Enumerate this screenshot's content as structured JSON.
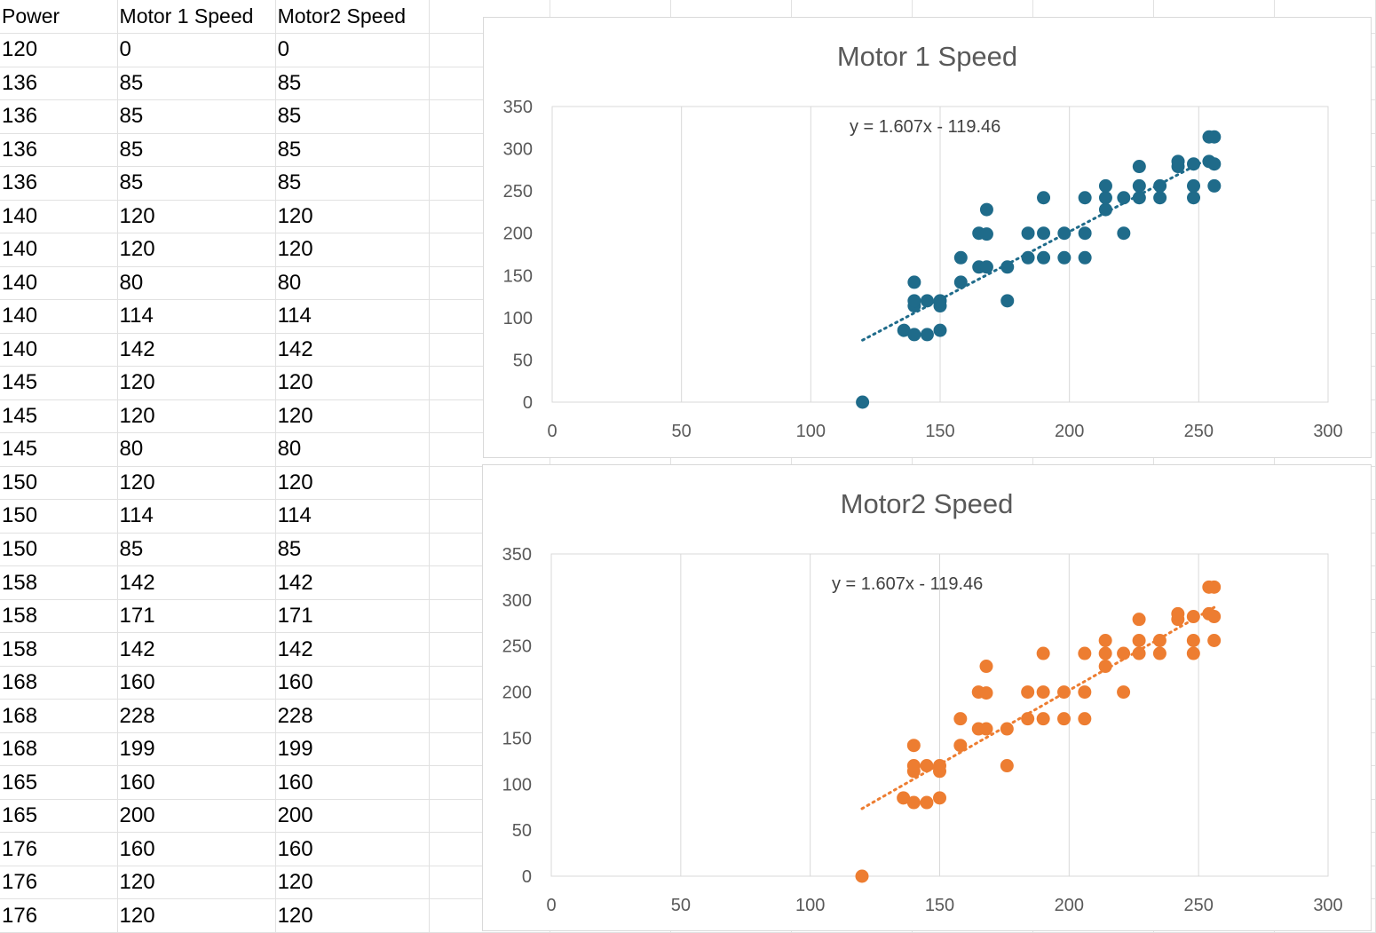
{
  "sheet": {
    "headers": [
      "Power",
      "Motor 1 Speed",
      "Motor2 Speed"
    ],
    "rows": [
      [
        "120",
        "0",
        "0"
      ],
      [
        "136",
        "85",
        "85"
      ],
      [
        "136",
        "85",
        "85"
      ],
      [
        "136",
        "85",
        "85"
      ],
      [
        "136",
        "85",
        "85"
      ],
      [
        "140",
        "120",
        "120"
      ],
      [
        "140",
        "120",
        "120"
      ],
      [
        "140",
        "80",
        "80"
      ],
      [
        "140",
        "114",
        "114"
      ],
      [
        "140",
        "142",
        "142"
      ],
      [
        "145",
        "120",
        "120"
      ],
      [
        "145",
        "120",
        "120"
      ],
      [
        "145",
        "80",
        "80"
      ],
      [
        "150",
        "120",
        "120"
      ],
      [
        "150",
        "114",
        "114"
      ],
      [
        "150",
        "85",
        "85"
      ],
      [
        "158",
        "142",
        "142"
      ],
      [
        "158",
        "171",
        "171"
      ],
      [
        "158",
        "142",
        "142"
      ],
      [
        "168",
        "160",
        "160"
      ],
      [
        "168",
        "228",
        "228"
      ],
      [
        "168",
        "199",
        "199"
      ],
      [
        "165",
        "160",
        "160"
      ],
      [
        "165",
        "200",
        "200"
      ],
      [
        "176",
        "160",
        "160"
      ],
      [
        "176",
        "120",
        "120"
      ],
      [
        "176",
        "120",
        "120"
      ]
    ]
  },
  "chart_data": [
    {
      "type": "scatter",
      "title": "Motor 1 Speed",
      "color": "#1f6b8a",
      "trendline": {
        "equation": "y = 1.607x - 119.46",
        "slope": 1.607,
        "intercept": -119.46,
        "x_range": [
          120,
          256
        ],
        "style": "dotted"
      },
      "xlim": [
        0,
        300
      ],
      "ylim": [
        0,
        350
      ],
      "xticks": [
        "0",
        "50",
        "100",
        "150",
        "200",
        "250",
        "300"
      ],
      "yticks": [
        "0",
        "50",
        "100",
        "150",
        "200",
        "250",
        "300",
        "350"
      ],
      "grid": "vertical",
      "points": [
        [
          120,
          0
        ],
        [
          136,
          85
        ],
        [
          140,
          80
        ],
        [
          140,
          114
        ],
        [
          140,
          120
        ],
        [
          140,
          142
        ],
        [
          145,
          80
        ],
        [
          145,
          120
        ],
        [
          150,
          85
        ],
        [
          150,
          114
        ],
        [
          150,
          120
        ],
        [
          158,
          142
        ],
        [
          158,
          171
        ],
        [
          165,
          160
        ],
        [
          165,
          200
        ],
        [
          168,
          160
        ],
        [
          168,
          199
        ],
        [
          168,
          228
        ],
        [
          176,
          120
        ],
        [
          176,
          160
        ],
        [
          184,
          171
        ],
        [
          184,
          200
        ],
        [
          190,
          171
        ],
        [
          190,
          200
        ],
        [
          190,
          242
        ],
        [
          198,
          171
        ],
        [
          198,
          200
        ],
        [
          206,
          171
        ],
        [
          206,
          200
        ],
        [
          206,
          242
        ],
        [
          214,
          228
        ],
        [
          214,
          242
        ],
        [
          214,
          256
        ],
        [
          221,
          200
        ],
        [
          221,
          242
        ],
        [
          227,
          242
        ],
        [
          227,
          256
        ],
        [
          227,
          279
        ],
        [
          235,
          242
        ],
        [
          235,
          256
        ],
        [
          242,
          279
        ],
        [
          242,
          285
        ],
        [
          248,
          242
        ],
        [
          248,
          256
        ],
        [
          248,
          282
        ],
        [
          254,
          285
        ],
        [
          254,
          314
        ],
        [
          256,
          256
        ],
        [
          256,
          282
        ],
        [
          256,
          314
        ]
      ]
    },
    {
      "type": "scatter",
      "title": "Motor2 Speed",
      "color": "#ed7d31",
      "trendline": {
        "equation": "y = 1.607x - 119.46",
        "slope": 1.607,
        "intercept": -119.46,
        "x_range": [
          120,
          256
        ],
        "style": "dotted"
      },
      "xlim": [
        0,
        300
      ],
      "ylim": [
        0,
        350
      ],
      "xticks": [
        "0",
        "50",
        "100",
        "150",
        "200",
        "250",
        "300"
      ],
      "yticks": [
        "0",
        "50",
        "100",
        "150",
        "200",
        "250",
        "300",
        "350"
      ],
      "grid": "vertical",
      "points": [
        [
          120,
          0
        ],
        [
          136,
          85
        ],
        [
          140,
          80
        ],
        [
          140,
          114
        ],
        [
          140,
          120
        ],
        [
          140,
          142
        ],
        [
          145,
          80
        ],
        [
          145,
          120
        ],
        [
          150,
          85
        ],
        [
          150,
          114
        ],
        [
          150,
          120
        ],
        [
          158,
          142
        ],
        [
          158,
          171
        ],
        [
          165,
          160
        ],
        [
          165,
          200
        ],
        [
          168,
          160
        ],
        [
          168,
          199
        ],
        [
          168,
          228
        ],
        [
          176,
          120
        ],
        [
          176,
          160
        ],
        [
          184,
          171
        ],
        [
          184,
          200
        ],
        [
          190,
          171
        ],
        [
          190,
          200
        ],
        [
          190,
          242
        ],
        [
          198,
          171
        ],
        [
          198,
          200
        ],
        [
          206,
          171
        ],
        [
          206,
          200
        ],
        [
          206,
          242
        ],
        [
          214,
          228
        ],
        [
          214,
          242
        ],
        [
          214,
          256
        ],
        [
          221,
          200
        ],
        [
          221,
          242
        ],
        [
          227,
          242
        ],
        [
          227,
          256
        ],
        [
          227,
          279
        ],
        [
          235,
          242
        ],
        [
          235,
          256
        ],
        [
          242,
          279
        ],
        [
          242,
          285
        ],
        [
          248,
          242
        ],
        [
          248,
          256
        ],
        [
          248,
          282
        ],
        [
          254,
          285
        ],
        [
          254,
          314
        ],
        [
          256,
          256
        ],
        [
          256,
          282
        ],
        [
          256,
          314
        ]
      ]
    }
  ]
}
